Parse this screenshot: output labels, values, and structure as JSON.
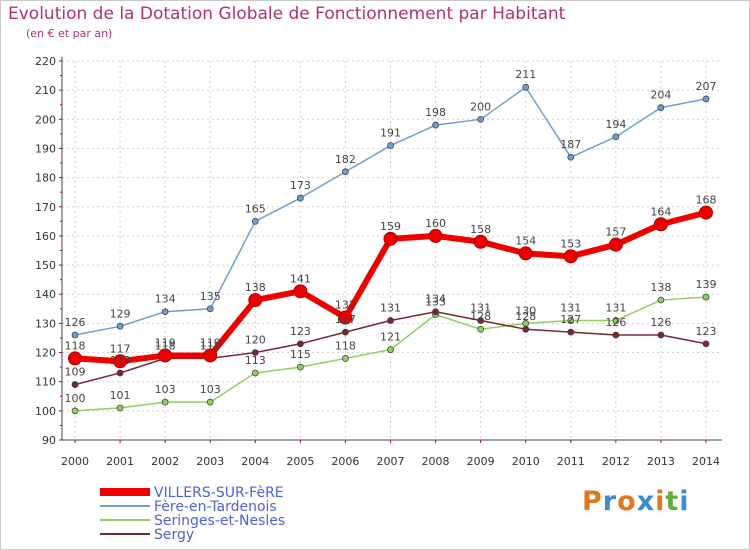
{
  "chart_data": {
    "type": "line",
    "title": "Evolution de la Dotation Globale de Fonctionnement par Habitant",
    "subtitle": "(en € et par an)",
    "xlabel": "",
    "ylabel": "",
    "x": [
      "2000",
      "2001",
      "2002",
      "2003",
      "2004",
      "2005",
      "2006",
      "2007",
      "2008",
      "2009",
      "2010",
      "2011",
      "2012",
      "2013",
      "2014"
    ],
    "ylim": [
      90,
      220
    ],
    "yticks": [
      "90",
      "100",
      "110",
      "120",
      "130",
      "140",
      "150",
      "160",
      "170",
      "180",
      "190",
      "200",
      "210",
      "220"
    ],
    "grid": true,
    "legend_position": "bottom-left",
    "series": [
      {
        "name": "VILLERS-SUR-FèRE",
        "color": "#ee0000",
        "values": [
          118,
          117,
          119,
          119,
          138,
          141,
          132,
          159,
          160,
          158,
          154,
          153,
          157,
          164,
          168
        ],
        "labels": [
          "118",
          "117",
          "119",
          "119",
          "138",
          "141",
          "132",
          "159",
          "160",
          "158",
          "154",
          "153",
          "157",
          "164",
          "168"
        ]
      },
      {
        "name": "Fère-en-Tardenois",
        "color": "#6f9fd0",
        "values": [
          126,
          129,
          134,
          135,
          165,
          173,
          182,
          191,
          198,
          200,
          211,
          187,
          194,
          204,
          207
        ],
        "labels": [
          "126",
          "129",
          "134",
          "135",
          "165",
          "173",
          "182",
          "191",
          "198",
          "200",
          "211",
          "187",
          "194",
          "204",
          "207"
        ]
      },
      {
        "name": "Seringes-et-Nesles",
        "color": "#8fd060",
        "values": [
          100,
          101,
          103,
          103,
          113,
          115,
          118,
          121,
          133,
          128,
          130,
          131,
          131,
          138,
          139
        ],
        "labels": [
          "100",
          "101",
          "103",
          "103",
          "113",
          "115",
          "118",
          "121",
          "133",
          "128",
          "130",
          "131",
          "131",
          "138",
          "139"
        ]
      },
      {
        "name": "Sergy",
        "color": "#7a2830",
        "values": [
          109,
          113,
          118,
          118,
          120,
          123,
          127,
          131,
          134,
          131,
          128,
          127,
          126,
          126,
          123
        ],
        "labels": [
          "109",
          "113",
          "118",
          "118",
          "120",
          "123",
          "127",
          "131",
          "134",
          "131",
          "128",
          "127",
          "126",
          "126",
          "123"
        ]
      }
    ]
  },
  "brand": {
    "logo_text": [
      "P",
      "r",
      "o",
      "x",
      "i",
      "t",
      "i"
    ],
    "logo_colors": [
      "#e07820",
      "#3c8ad0",
      "#e07820",
      "#3c8ad0",
      "#e07820",
      "#60b040",
      "#3c8ad0"
    ]
  }
}
